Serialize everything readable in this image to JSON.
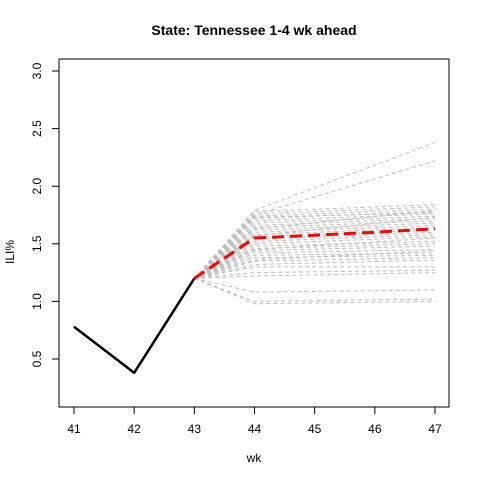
{
  "chart_data": {
    "type": "line",
    "title": "State: Tennessee 1-4 wk ahead",
    "xlabel": "wk",
    "ylabel": "ILI%",
    "xlim": [
      41,
      47
    ],
    "ylim": [
      0.5,
      3.0
    ],
    "x_ticks": [
      41,
      42,
      43,
      44,
      45,
      46,
      47
    ],
    "y_ticks": [
      0.5,
      1.0,
      1.5,
      2.0,
      2.5,
      3.0
    ],
    "y_tick_labels": [
      "0.5",
      "1.0",
      "1.5",
      "2.0",
      "2.5",
      "3.0"
    ],
    "grid": false,
    "colors": {
      "observed": "#000000",
      "forecast_mean": "#ff0000",
      "samples": "#bebebe"
    },
    "series": [
      {
        "role": "observed",
        "x": [
          41,
          42,
          43
        ],
        "values": [
          0.78,
          0.38,
          1.2
        ]
      },
      {
        "role": "forecast_mean",
        "x": [
          43,
          44,
          45,
          46,
          47
        ],
        "values": [
          1.2,
          1.55,
          1.575,
          1.6,
          1.63
        ]
      }
    ],
    "samples": {
      "x": [
        43,
        44,
        47
      ],
      "paths": [
        [
          1.2,
          1.79,
          2.38
        ],
        [
          1.2,
          1.75,
          2.22
        ],
        [
          1.2,
          1.78,
          1.84
        ],
        [
          1.2,
          1.76,
          1.82
        ],
        [
          1.2,
          1.74,
          1.8
        ],
        [
          1.2,
          1.72,
          1.78
        ],
        [
          1.2,
          1.7,
          1.76
        ],
        [
          1.2,
          1.68,
          1.74
        ],
        [
          1.2,
          1.66,
          1.72
        ],
        [
          1.2,
          1.64,
          1.7
        ],
        [
          1.2,
          1.62,
          1.68
        ],
        [
          1.2,
          1.6,
          1.66
        ],
        [
          1.2,
          1.58,
          1.64
        ],
        [
          1.2,
          1.56,
          1.62
        ],
        [
          1.2,
          1.54,
          1.6
        ],
        [
          1.2,
          1.52,
          1.58
        ],
        [
          1.2,
          1.5,
          1.56
        ],
        [
          1.2,
          1.48,
          1.52
        ],
        [
          1.2,
          1.46,
          1.5
        ],
        [
          1.2,
          1.44,
          1.48
        ],
        [
          1.2,
          1.42,
          1.45
        ],
        [
          1.2,
          1.4,
          1.42
        ],
        [
          1.2,
          1.38,
          1.4
        ],
        [
          1.2,
          1.35,
          1.38
        ],
        [
          1.2,
          1.32,
          1.36
        ],
        [
          1.2,
          1.3,
          1.3
        ],
        [
          1.2,
          1.25,
          1.27
        ],
        [
          1.2,
          1.22,
          1.25
        ],
        [
          1.2,
          1.08,
          1.1
        ],
        [
          1.2,
          1.0,
          1.02
        ],
        [
          1.2,
          0.98,
          1.0
        ],
        [
          1.2,
          1.45,
          1.55
        ],
        [
          1.2,
          1.36,
          1.44
        ],
        [
          1.2,
          1.57,
          1.73
        ],
        [
          1.2,
          1.63,
          1.79
        ],
        [
          1.2,
          1.73,
          1.77
        ]
      ]
    }
  }
}
